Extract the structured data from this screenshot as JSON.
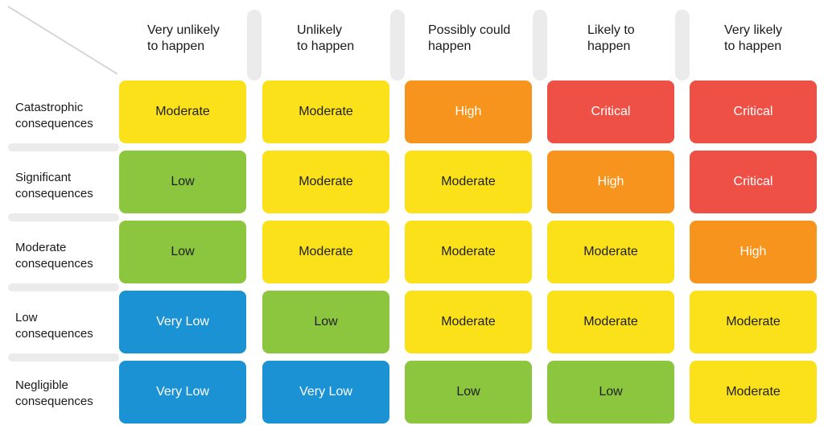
{
  "colors": {
    "very_low": "#1a92d4",
    "low": "#8cc63f",
    "moderate": "#fbe119",
    "high": "#f7941d",
    "critical": "#ef5046",
    "separator": "#ebebeb"
  },
  "columns": [
    {
      "line1": "Very unlikely",
      "line2": "to happen"
    },
    {
      "line1": "Unlikely",
      "line2": "to happen"
    },
    {
      "line1": "Possibly could",
      "line2": "happen"
    },
    {
      "line1": "Likely to",
      "line2": "happen"
    },
    {
      "line1": "Very likely",
      "line2": "to happen"
    }
  ],
  "rows": [
    {
      "line1": "Catastrophic",
      "line2": "consequences",
      "cells": [
        {
          "label": "Moderate",
          "level": "moderate"
        },
        {
          "label": "Moderate",
          "level": "moderate"
        },
        {
          "label": "High",
          "level": "high"
        },
        {
          "label": "Critical",
          "level": "critical"
        },
        {
          "label": "Critical",
          "level": "critical"
        }
      ]
    },
    {
      "line1": "Significant",
      "line2": "consequences",
      "cells": [
        {
          "label": "Low",
          "level": "low"
        },
        {
          "label": "Moderate",
          "level": "moderate"
        },
        {
          "label": "Moderate",
          "level": "moderate"
        },
        {
          "label": "High",
          "level": "high"
        },
        {
          "label": "Critical",
          "level": "critical"
        }
      ]
    },
    {
      "line1": "Moderate",
      "line2": "consequences",
      "cells": [
        {
          "label": "Low",
          "level": "low"
        },
        {
          "label": "Moderate",
          "level": "moderate"
        },
        {
          "label": "Moderate",
          "level": "moderate"
        },
        {
          "label": "Moderate",
          "level": "moderate"
        },
        {
          "label": "High",
          "level": "high"
        }
      ]
    },
    {
      "line1": "Low",
      "line2": "consequences",
      "cells": [
        {
          "label": "Very Low",
          "level": "very_low"
        },
        {
          "label": "Low",
          "level": "low"
        },
        {
          "label": "Moderate",
          "level": "moderate"
        },
        {
          "label": "Moderate",
          "level": "moderate"
        },
        {
          "label": "Moderate",
          "level": "moderate"
        }
      ]
    },
    {
      "line1": "Negligible",
      "line2": "consequences",
      "cells": [
        {
          "label": "Very Low",
          "level": "very_low"
        },
        {
          "label": "Very Low",
          "level": "very_low"
        },
        {
          "label": "Low",
          "level": "low"
        },
        {
          "label": "Low",
          "level": "low"
        },
        {
          "label": "Moderate",
          "level": "moderate"
        }
      ]
    }
  ]
}
